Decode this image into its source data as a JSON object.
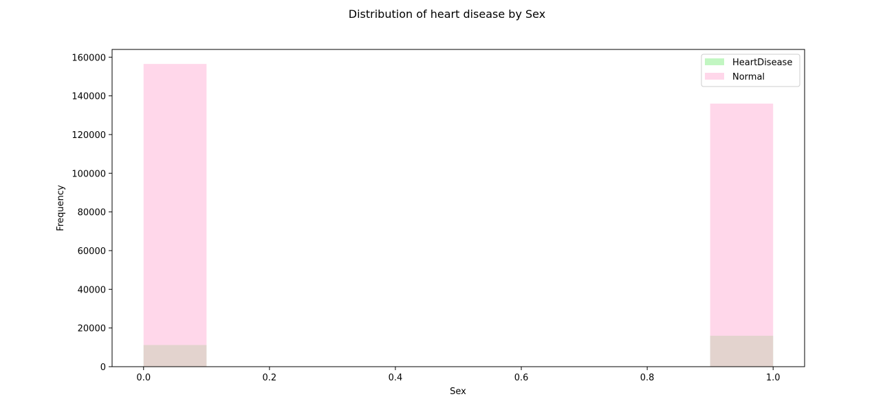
{
  "chart_data": {
    "type": "bar",
    "title": "Distribution of heart disease by Sex",
    "xlabel": "Sex",
    "ylabel": "Frequency",
    "xlim": [
      -0.05,
      1.05
    ],
    "ylim": [
      0,
      164000
    ],
    "x_ticks": [
      0.0,
      0.2,
      0.4,
      0.6,
      0.8,
      1.0
    ],
    "x_tick_labels": [
      "0.0",
      "0.2",
      "0.4",
      "0.6",
      "0.8",
      "1.0"
    ],
    "y_ticks": [
      0,
      20000,
      40000,
      60000,
      80000,
      100000,
      120000,
      140000,
      160000
    ],
    "y_tick_labels": [
      "0",
      "20000",
      "40000",
      "60000",
      "80000",
      "100000",
      "120000",
      "140000",
      "160000"
    ],
    "bins": [
      [
        0.0,
        0.1
      ],
      [
        0.9,
        1.0
      ]
    ],
    "grid": false,
    "legend_position": "top-right",
    "series": [
      {
        "name": "HeartDisease",
        "values": [
          11200,
          16000
        ],
        "color": "#90ee90",
        "opacity": 0.55
      },
      {
        "name": "Normal",
        "values": [
          156500,
          136000
        ],
        "color": "#ffb6d9",
        "opacity": 0.55
      }
    ]
  }
}
